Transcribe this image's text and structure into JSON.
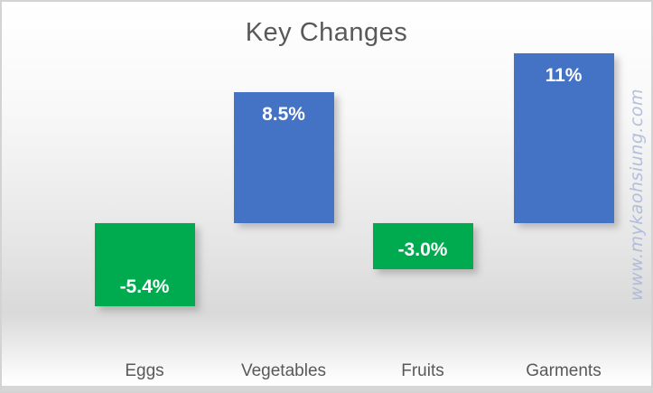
{
  "chart_data": {
    "type": "bar",
    "title": "Key Changes",
    "categories": [
      "Eggs",
      "Vegetables",
      "Fruits",
      "Garments"
    ],
    "values": [
      -5.4,
      8.5,
      -3.0,
      11
    ],
    "data_labels": [
      "-5.4%",
      "8.5%",
      "-3.0%",
      "11%"
    ],
    "series_colors": {
      "positive": "#4472c4",
      "negative": "#00ab50"
    },
    "label_text_color": "#ffffff",
    "title_color": "#595959",
    "category_label_color": "#595959",
    "axis": {
      "baseline": 0,
      "ylim": [
        -6.5,
        11.5
      ],
      "grid": false,
      "y_axis_visible": false,
      "x_axis_visible": false
    },
    "legend": "none"
  },
  "watermark": {
    "text": "www.mykaohsiung.com",
    "color": "#a9b6d8"
  },
  "frame": {
    "border_color": "#d3d3d3",
    "bottom_strip_color": "#d6d6d6"
  }
}
